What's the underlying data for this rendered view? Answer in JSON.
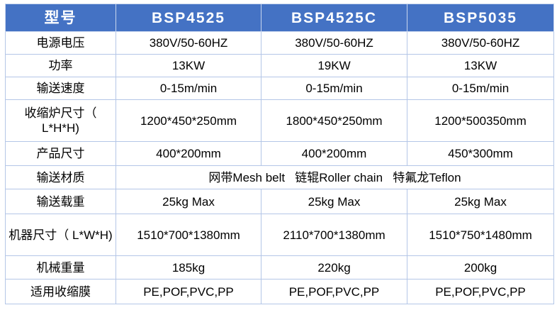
{
  "header": [
    "型号",
    "BSP4525",
    "BSP4525C",
    "BSP5035"
  ],
  "rows": [
    {
      "label": "电源电压",
      "values": [
        "380V/50-60HZ",
        "380V/50-60HZ",
        "380V/50-60HZ"
      ]
    },
    {
      "label": "功率",
      "values": [
        "13KW",
        "19KW",
        "13KW"
      ]
    },
    {
      "label": "输送速度",
      "values": [
        "0-15m/min",
        "0-15m/min",
        "0-15m/min"
      ]
    },
    {
      "label": "收缩炉尺寸（ L*H*H)",
      "values": [
        "1200*450*250mm",
        "1800*450*250mm",
        "1200*500350mm"
      ]
    },
    {
      "label": "产品尺寸",
      "values": [
        "400*200mm",
        "400*200mm",
        "450*300mm"
      ]
    },
    {
      "label": "输送材质",
      "merged": "网带Mesh belt   链辊Roller chain   特氟龙Teflon"
    },
    {
      "label": "输送载重",
      "values": [
        "25kg Max",
        "25kg Max",
        "25kg Max"
      ]
    },
    {
      "label": "机器尺寸（ L*W*H)",
      "values": [
        "1510*700*1380mm",
        "2110*700*1380mm",
        "1510*750*1480mm"
      ]
    },
    {
      "label": "机械重量",
      "values": [
        "185kg",
        "220kg",
        "200kg"
      ]
    },
    {
      "label": "适用收缩膜",
      "values": [
        "PE,POF,PVC,PP",
        "PE,POF,PVC,PP",
        "PE,POF,PVC,PP"
      ]
    }
  ],
  "colors": {
    "header_bg": "#4472c4",
    "border": "#b4c6e7"
  }
}
